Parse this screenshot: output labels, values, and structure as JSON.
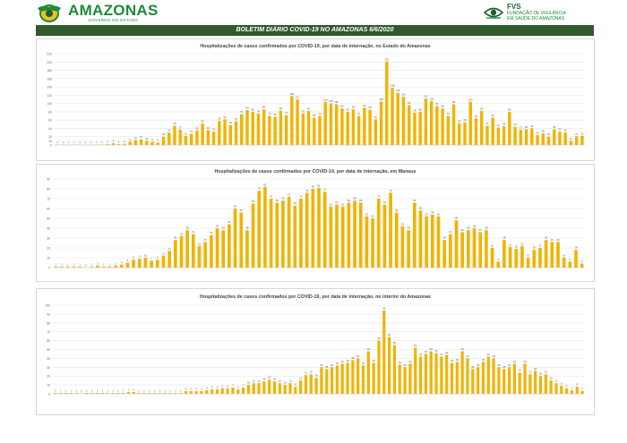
{
  "header": {
    "brand_name": "AMAZONAS",
    "brand_sub": "GOVERNO DO ESTADO",
    "fvs_abbr": "FVS",
    "fvs_full_line1": "FUNDAÇÃO DE VIGILÂNCIA",
    "fvs_full_line2": "EM SAÚDE DO AMAZONAS"
  },
  "banner": {
    "title": "BOLETIM DIÁRIO COVID-19 NO AMAZONAS 6/6/2020"
  },
  "colors": {
    "bar": "#f0b400",
    "banner": "#2f5b2a",
    "brand": "#1d8a3a"
  },
  "chart_data": [
    {
      "type": "bar",
      "title": "Hospitalizações de casos confirmados por COVID-19, por data de internação, no Estado do Amazonas",
      "ylim": [
        0,
        220
      ],
      "yticks": [
        0,
        10,
        20,
        40,
        60,
        80,
        100,
        120,
        140,
        160,
        180,
        200,
        220
      ],
      "values": [
        1,
        1,
        1,
        1,
        1,
        0,
        1,
        1,
        1,
        2,
        4,
        2,
        3,
        8,
        12,
        14,
        10,
        8,
        6,
        20,
        30,
        46,
        37,
        22,
        27,
        35,
        52,
        36,
        32,
        58,
        62,
        48,
        57,
        74,
        84,
        80,
        76,
        86,
        70,
        68,
        83,
        72,
        118,
        110,
        76,
        82,
        66,
        70,
        104,
        100,
        98,
        88,
        80,
        86,
        70,
        90,
        85,
        62,
        105,
        201,
        138,
        126,
        116,
        96,
        78,
        80,
        112,
        106,
        94,
        88,
        70,
        98,
        52,
        55,
        104,
        64,
        82,
        46,
        66,
        42,
        45,
        80,
        44,
        37,
        38,
        40,
        24,
        28,
        20,
        38,
        32,
        30,
        10,
        21,
        22
      ]
    },
    {
      "type": "bar",
      "title": "Hospitalizações de casos confirmados por COVID-19, por data de internação, em Manaus",
      "ylim": [
        0,
        90
      ],
      "yticks": [
        0,
        10,
        20,
        30,
        40,
        50,
        60,
        70,
        80,
        90
      ],
      "values": [
        1,
        1,
        1,
        1,
        1,
        0,
        1,
        2,
        1,
        1,
        2,
        3,
        5,
        8,
        9,
        10,
        7,
        8,
        12,
        17,
        28,
        32,
        38,
        34,
        22,
        26,
        33,
        40,
        38,
        44,
        60,
        56,
        38,
        65,
        78,
        82,
        70,
        66,
        68,
        72,
        63,
        70,
        76,
        80,
        81,
        77,
        62,
        64,
        62,
        66,
        68,
        66,
        52,
        50,
        70,
        64,
        76,
        56,
        42,
        38,
        66,
        58,
        52,
        54,
        52,
        28,
        34,
        48,
        36,
        38,
        40,
        36,
        38,
        20,
        6,
        28,
        21,
        19,
        22,
        10,
        18,
        20,
        28,
        26,
        26,
        10,
        6,
        18,
        4
      ]
    },
    {
      "type": "bar",
      "title": "Hospitalizações  de casos confirmados por COVID-19, por data de internação, no interior do Amazonas",
      "ylim": [
        0,
        100
      ],
      "yticks": [
        0,
        10,
        20,
        30,
        40,
        50,
        60,
        70,
        80,
        90,
        100
      ],
      "values": [
        1,
        1,
        1,
        1,
        1,
        0,
        1,
        1,
        1,
        1,
        1,
        1,
        1,
        1,
        2,
        2,
        1,
        1,
        1,
        1,
        1,
        1,
        1,
        1,
        1,
        3,
        3,
        3,
        3,
        4,
        5,
        5,
        6,
        6,
        7,
        5,
        7,
        10,
        12,
        12,
        14,
        16,
        14,
        12,
        10,
        12,
        8,
        15,
        21,
        22,
        18,
        30,
        28,
        30,
        32,
        34,
        35,
        38,
        40,
        32,
        48,
        35,
        60,
        94,
        64,
        55,
        33,
        30,
        34,
        52,
        42,
        45,
        48,
        46,
        42,
        44,
        35,
        36,
        48,
        40,
        28,
        30,
        36,
        42,
        40,
        30,
        28,
        30,
        34,
        24,
        34,
        22,
        26,
        20,
        22,
        15,
        12,
        9,
        6,
        4,
        8,
        3
      ]
    }
  ]
}
